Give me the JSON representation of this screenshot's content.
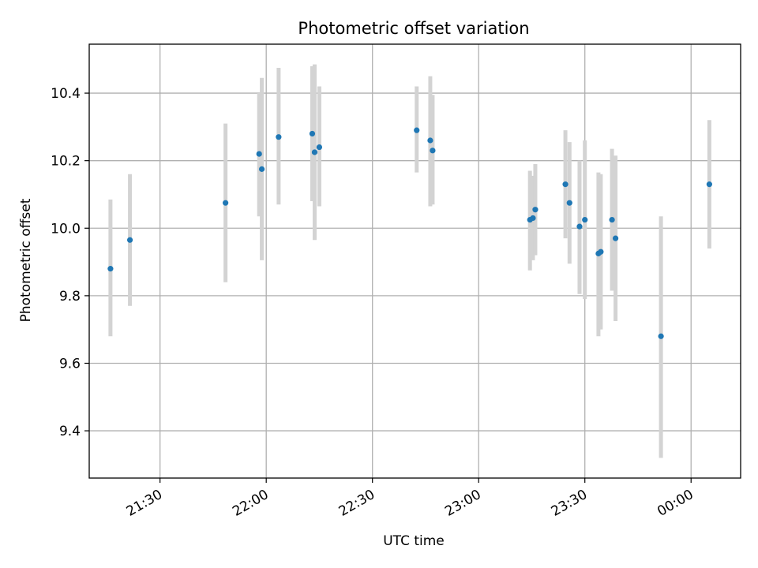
{
  "chart_data": {
    "type": "scatter",
    "title": "Photometric offset variation",
    "xlabel": "UTC time",
    "ylabel": "Photometric offset",
    "x_unit": "UTC time (HH:MM, night crossing midnight)",
    "xlim": [
      "21:10",
      "00:14"
    ],
    "ylim": [
      9.26,
      10.545
    ],
    "x_ticks": [
      "21:30",
      "22:00",
      "22:30",
      "23:00",
      "23:30",
      "00:00"
    ],
    "y_ticks": [
      9.4,
      9.6,
      9.8,
      10.0,
      10.2,
      10.4
    ],
    "y_tick_labels": [
      "9.4",
      "9.6",
      "9.8",
      "10.0",
      "10.2",
      "10.4"
    ],
    "grid": true,
    "colors": {
      "point": "#1f77b4",
      "errorbar": "#d3d3d3",
      "grid": "#b0b0b0",
      "frame": "#000000"
    },
    "points": [
      {
        "x": "21:16:00",
        "y": 9.88,
        "ylow": 9.68,
        "yhigh": 10.085
      },
      {
        "x": "21:21:30",
        "y": 9.965,
        "ylow": 9.77,
        "yhigh": 10.16
      },
      {
        "x": "21:48:30",
        "y": 10.075,
        "ylow": 9.84,
        "yhigh": 10.31
      },
      {
        "x": "21:58:00",
        "y": 10.22,
        "ylow": 10.035,
        "yhigh": 10.4
      },
      {
        "x": "21:58:45",
        "y": 10.175,
        "ylow": 9.905,
        "yhigh": 10.445
      },
      {
        "x": "22:03:30",
        "y": 10.27,
        "ylow": 10.07,
        "yhigh": 10.475
      },
      {
        "x": "22:13:00",
        "y": 10.28,
        "ylow": 10.08,
        "yhigh": 10.48
      },
      {
        "x": "22:13:40",
        "y": 10.225,
        "ylow": 9.965,
        "yhigh": 10.485
      },
      {
        "x": "22:15:00",
        "y": 10.24,
        "ylow": 10.065,
        "yhigh": 10.42
      },
      {
        "x": "22:42:30",
        "y": 10.29,
        "ylow": 10.165,
        "yhigh": 10.42
      },
      {
        "x": "22:46:20",
        "y": 10.26,
        "ylow": 10.065,
        "yhigh": 10.45
      },
      {
        "x": "22:47:00",
        "y": 10.23,
        "ylow": 10.07,
        "yhigh": 10.395
      },
      {
        "x": "23:14:30",
        "y": 10.025,
        "ylow": 9.875,
        "yhigh": 10.17
      },
      {
        "x": "23:15:20",
        "y": 10.03,
        "ylow": 9.905,
        "yhigh": 10.155
      },
      {
        "x": "23:16:00",
        "y": 10.055,
        "ylow": 9.92,
        "yhigh": 10.19
      },
      {
        "x": "23:24:30",
        "y": 10.13,
        "ylow": 9.97,
        "yhigh": 10.29
      },
      {
        "x": "23:25:40",
        "y": 10.075,
        "ylow": 9.895,
        "yhigh": 10.255
      },
      {
        "x": "23:28:30",
        "y": 10.005,
        "ylow": 9.805,
        "yhigh": 10.2
      },
      {
        "x": "23:30:00",
        "y": 10.025,
        "ylow": 9.79,
        "yhigh": 10.26
      },
      {
        "x": "23:33:50",
        "y": 9.925,
        "ylow": 9.68,
        "yhigh": 10.165
      },
      {
        "x": "23:34:30",
        "y": 9.93,
        "ylow": 9.7,
        "yhigh": 10.16
      },
      {
        "x": "23:37:40",
        "y": 10.025,
        "ylow": 9.815,
        "yhigh": 10.235
      },
      {
        "x": "23:38:40",
        "y": 9.97,
        "ylow": 9.725,
        "yhigh": 10.215
      },
      {
        "x": "23:51:30",
        "y": 9.68,
        "ylow": 9.32,
        "yhigh": 10.035
      },
      {
        "x": "00:05:10",
        "y": 10.13,
        "ylow": 9.94,
        "yhigh": 10.32
      }
    ]
  }
}
